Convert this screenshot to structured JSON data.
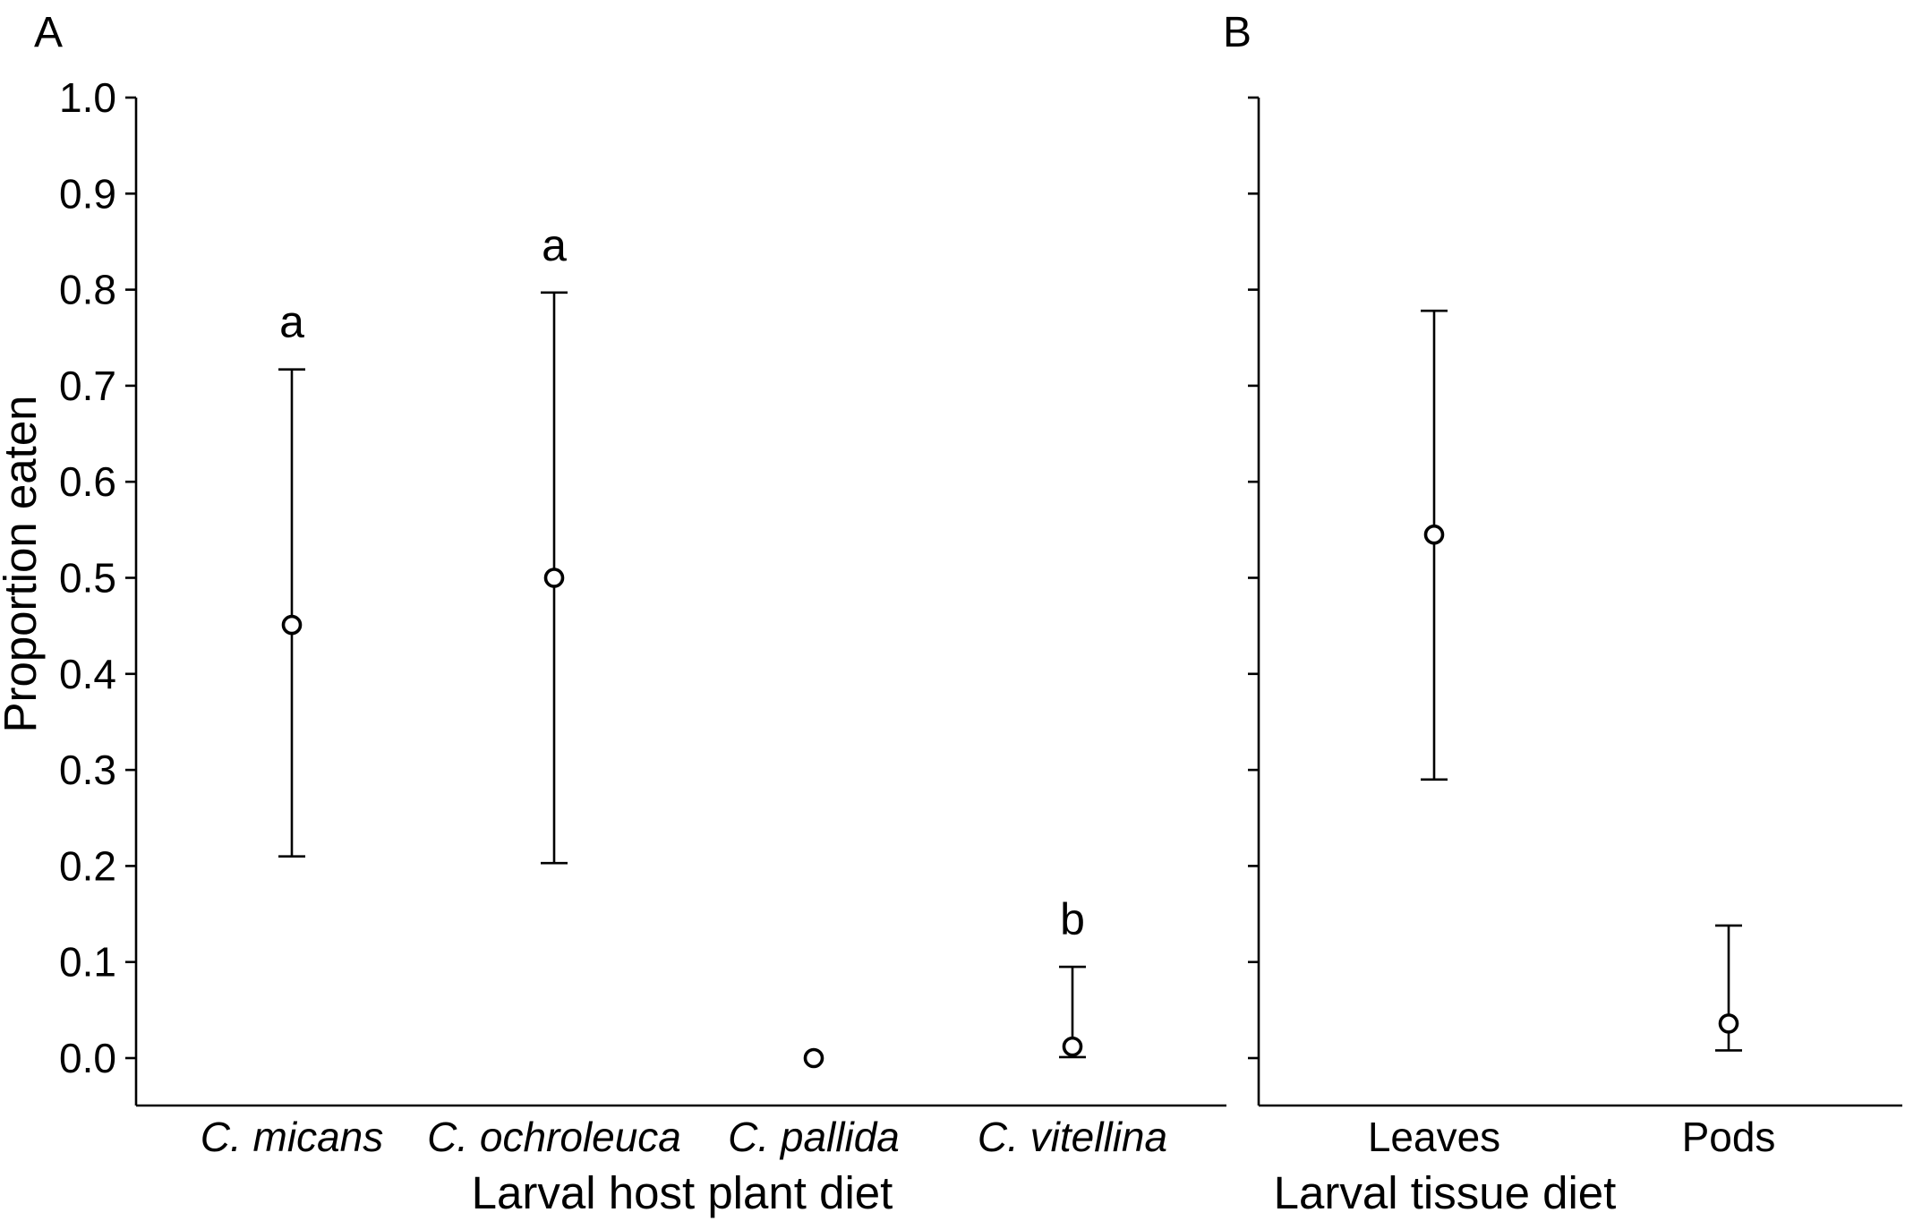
{
  "chart_data": [
    {
      "panel": "A",
      "type": "scatter",
      "xlabel": "Larval host plant diet",
      "ylabel": "Proportion eaten",
      "ylim": [
        0.0,
        1.0
      ],
      "yticks": [
        "0.0",
        "0.1",
        "0.2",
        "0.3",
        "0.4",
        "0.5",
        "0.6",
        "0.7",
        "0.8",
        "0.9",
        "1.0"
      ],
      "categories": [
        "C. micans",
        "C. ochroleuca",
        "C. pallida",
        "C. vitellina"
      ],
      "values": [
        0.451,
        0.5,
        0.0,
        0.012
      ],
      "ci_lower": [
        0.21,
        0.203,
        null,
        0.001
      ],
      "ci_upper": [
        0.717,
        0.797,
        null,
        0.095
      ],
      "significance_letters": [
        "a",
        "a",
        "",
        "b"
      ],
      "italic_categories": true
    },
    {
      "panel": "B",
      "type": "scatter",
      "xlabel": "Larval tissue diet",
      "ylabel": "",
      "ylim": [
        0.0,
        1.0
      ],
      "categories": [
        "Leaves",
        "Pods"
      ],
      "values": [
        0.545,
        0.036
      ],
      "ci_lower": [
        0.29,
        0.008
      ],
      "ci_upper": [
        0.778,
        0.138
      ],
      "significance_letters": [
        "",
        ""
      ],
      "italic_categories": false
    }
  ]
}
